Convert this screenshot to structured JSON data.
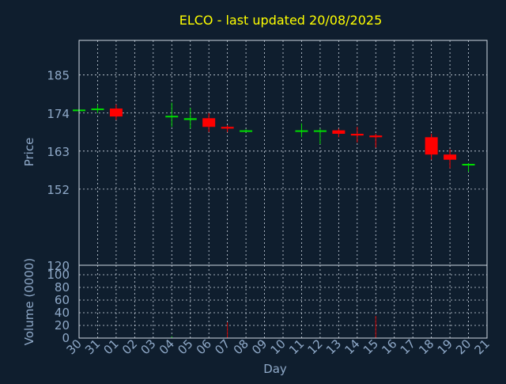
{
  "chart_data": [
    {
      "type": "candlestick",
      "title": "ELCO - last updated 20/08/2025",
      "ylabel": "Price",
      "yticks": [
        120,
        152,
        163,
        174,
        185
      ],
      "ylim": [
        130,
        195
      ],
      "grid": true,
      "categories": [
        "30",
        "31",
        "01",
        "02",
        "03",
        "04",
        "05",
        "06",
        "07",
        "08",
        "09",
        "10",
        "11",
        "12",
        "13",
        "14",
        "15",
        "16",
        "17",
        "18",
        "19",
        "20",
        "21"
      ],
      "candles": [
        {
          "day": "30",
          "open": 175,
          "high": 175.3,
          "low": 174.7,
          "close": 175
        },
        {
          "day": "31",
          "open": 174.9,
          "high": 176.5,
          "low": 174,
          "close": 175.3
        },
        {
          "day": "01",
          "open": 175.3,
          "high": 176.5,
          "low": 172,
          "close": 173
        },
        {
          "day": "04",
          "open": 173,
          "high": 177,
          "low": 170,
          "close": 173.2
        },
        {
          "day": "05",
          "open": 172,
          "high": 175.5,
          "low": 169.5,
          "close": 172.5
        },
        {
          "day": "06",
          "open": 172.5,
          "high": 174,
          "low": 168.5,
          "close": 170
        },
        {
          "day": "07",
          "open": 170,
          "high": 170.5,
          "low": 168.5,
          "close": 169.5
        },
        {
          "day": "08",
          "open": 169,
          "high": 169.3,
          "low": 168.5,
          "close": 169
        },
        {
          "day": "11",
          "open": 169,
          "high": 171,
          "low": 167,
          "close": 169
        },
        {
          "day": "12",
          "open": 169,
          "high": 169.5,
          "low": 165,
          "close": 169
        },
        {
          "day": "13",
          "open": 169,
          "high": 169.5,
          "low": 167,
          "close": 168
        },
        {
          "day": "14",
          "open": 168,
          "high": 170,
          "low": 165.5,
          "close": 167.5
        },
        {
          "day": "15",
          "open": 167.5,
          "high": 168,
          "low": 164,
          "close": 167
        },
        {
          "day": "18",
          "open": 167,
          "high": 168,
          "low": 160.5,
          "close": 162
        },
        {
          "day": "19",
          "open": 162,
          "high": 163.5,
          "low": 158,
          "close": 160.5
        },
        {
          "day": "20",
          "open": 159,
          "high": 159.5,
          "low": 157,
          "close": 159.3
        }
      ],
      "colors": {
        "up": "#00dd00",
        "down": "#ff0000",
        "title": "#ffff00",
        "axis_text": "#8fa9c8",
        "grid": "#cfd8e3",
        "background": "#0f1e2e"
      }
    },
    {
      "type": "bar",
      "ylabel": "Volume (0000)",
      "xlabel": "Day",
      "yticks": [
        0,
        20,
        40,
        60,
        80,
        100
      ],
      "ylim": [
        0,
        115
      ],
      "grid": true,
      "categories": [
        "30",
        "31",
        "01",
        "02",
        "03",
        "04",
        "05",
        "06",
        "07",
        "08",
        "09",
        "10",
        "11",
        "12",
        "13",
        "14",
        "15",
        "16",
        "17",
        "18",
        "19",
        "20",
        "21"
      ],
      "bars": [
        {
          "day": "04",
          "value": 3,
          "color": "#00aa00"
        },
        {
          "day": "07",
          "value": 25,
          "color": "#cc0000"
        },
        {
          "day": "15",
          "value": 35,
          "color": "#cc0000"
        }
      ]
    }
  ]
}
